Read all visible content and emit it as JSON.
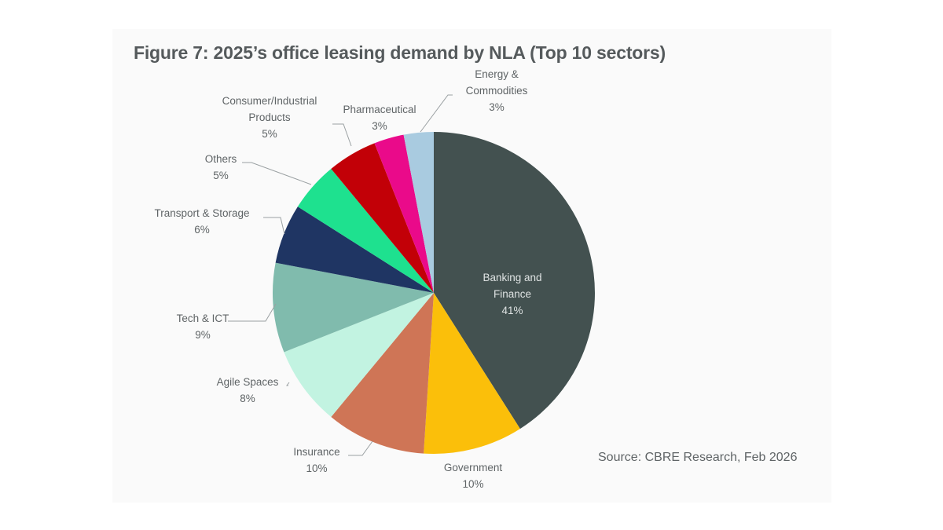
{
  "chart_data": {
    "type": "pie",
    "title": "Figure 7: 2025’s office leasing demand by NLA (Top 10 sectors)",
    "source": "Source: CBRE Research, Feb 2026",
    "start": "12 o'clock, clockwise",
    "slices": [
      {
        "name": "Banking and Finance",
        "lines": [
          "Banking and",
          "Finance"
        ],
        "pct_label": "41%",
        "value": 41,
        "color": "#435150"
      },
      {
        "name": "Government",
        "lines": [
          "Government"
        ],
        "pct_label": "10%",
        "value": 10,
        "color": "#fbbf0a"
      },
      {
        "name": "Insurance",
        "lines": [
          "Insurance"
        ],
        "pct_label": "10%",
        "value": 10,
        "color": "#cf7556"
      },
      {
        "name": "Agile Spaces",
        "lines": [
          "Agile Spaces"
        ],
        "pct_label": "8%",
        "value": 8,
        "color": "#c2f3e1"
      },
      {
        "name": "Tech & ICT",
        "lines": [
          "Tech & ICT"
        ],
        "pct_label": "9%",
        "value": 9,
        "color": "#80bbad"
      },
      {
        "name": "Transport & Storage",
        "lines": [
          "Transport & Storage"
        ],
        "pct_label": "6%",
        "value": 6,
        "color": "#1f3563"
      },
      {
        "name": "Others",
        "lines": [
          "Others"
        ],
        "pct_label": "5%",
        "value": 5,
        "color": "#1ee18f"
      },
      {
        "name": "Consumer/Industrial Products",
        "lines": [
          "Consumer/Industrial",
          "Products"
        ],
        "pct_label": "5%",
        "value": 5,
        "color": "#c20007"
      },
      {
        "name": "Pharmaceutical",
        "lines": [
          "Pharmaceutical"
        ],
        "pct_label": "3%",
        "value": 3,
        "color": "#ea0a8a"
      },
      {
        "name": "Energy & Commodities",
        "lines": [
          "Energy &",
          "Commodities"
        ],
        "pct_label": "3%",
        "value": 3,
        "color": "#a9cbe0"
      }
    ]
  }
}
